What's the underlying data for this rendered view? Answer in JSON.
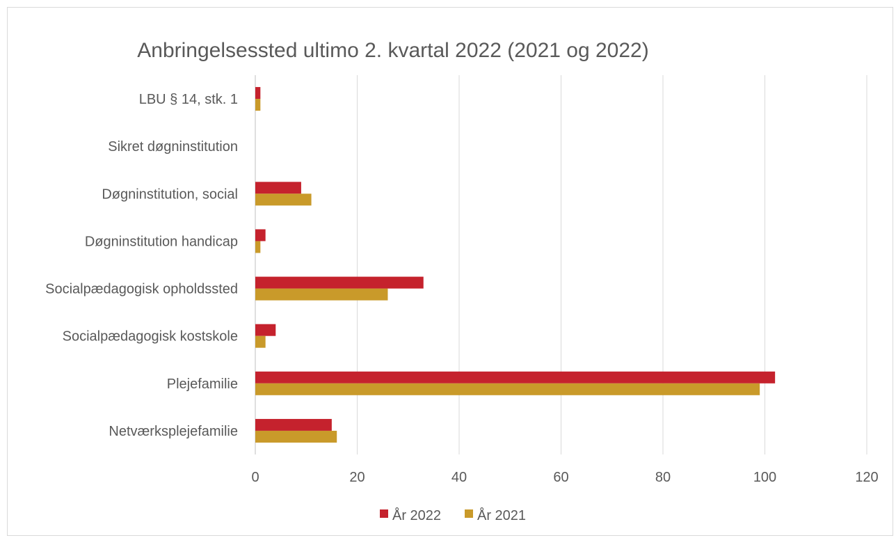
{
  "chart_data": {
    "type": "bar",
    "orientation": "horizontal",
    "title": "Anbringelsessted ultimo 2. kvartal 2022 (2021 og 2022)",
    "xlabel": "",
    "ylabel": "",
    "xlim": [
      0,
      120
    ],
    "x_ticks": [
      0,
      20,
      40,
      60,
      80,
      100,
      120
    ],
    "grid": true,
    "legend_position": "bottom",
    "categories": [
      "LBU § 14, stk. 1",
      "Sikret døgninstitution",
      "Døgninstitution, social",
      "Døgninstitution handicap",
      "Socialpædagogisk opholdssted",
      "Socialpædagogisk kostskole",
      "Plejefamilie",
      "Netværksplejefamilie"
    ],
    "series": [
      {
        "name": "År 2022",
        "color": "#c5222d",
        "values": [
          1,
          0,
          9,
          2,
          33,
          4,
          102,
          15
        ]
      },
      {
        "name": "År 2021",
        "color": "#c99a2a",
        "values": [
          1,
          0,
          11,
          1,
          26,
          2,
          99,
          16
        ]
      }
    ]
  }
}
